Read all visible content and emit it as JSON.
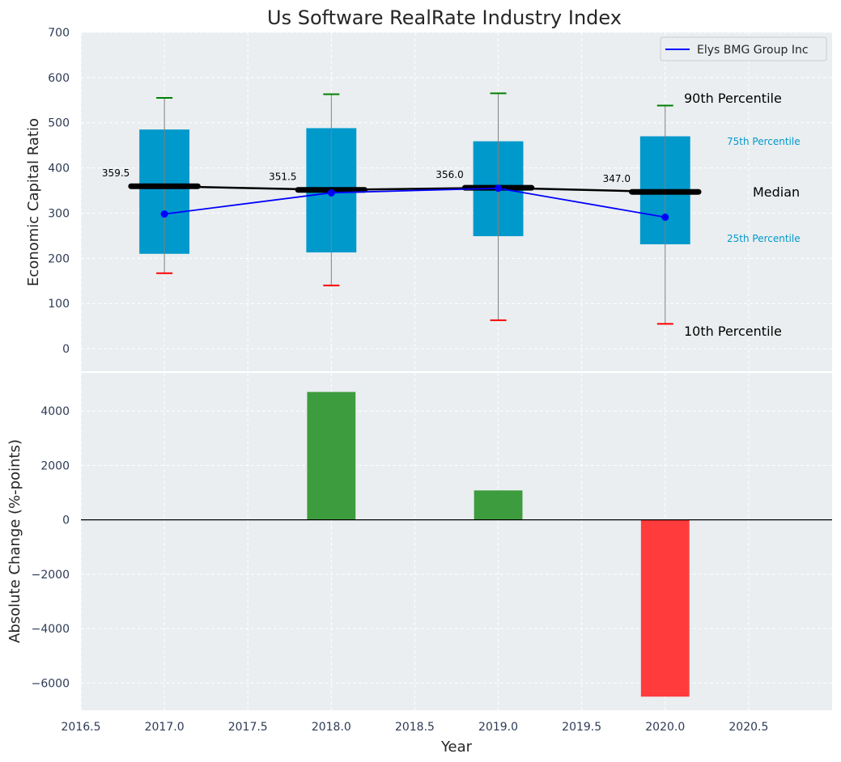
{
  "chart_data": {
    "title": "Us Software RealRate Industry Index",
    "xlabel": "Year",
    "x_ticks": [
      "2016.5",
      "2017.0",
      "2017.5",
      "2018.0",
      "2018.5",
      "2019.0",
      "2019.5",
      "2020.0",
      "2020.5"
    ],
    "xlim": [
      2016.5,
      2021.0
    ],
    "grid": true,
    "panels": [
      {
        "type": "box",
        "ylabel": "Economic Capital Ratio",
        "ylim": [
          -50,
          700
        ],
        "y_ticks": [
          "0",
          "100",
          "200",
          "300",
          "400",
          "500",
          "600",
          "700"
        ],
        "boxes": [
          {
            "x": 2017.0,
            "p10": 167,
            "p25": 210,
            "median": 359.5,
            "p75": 485,
            "p90": 555,
            "median_label": "359.5"
          },
          {
            "x": 2018.0,
            "p10": 140,
            "p25": 213,
            "median": 351.5,
            "p75": 488,
            "p90": 563,
            "median_label": "351.5"
          },
          {
            "x": 2019.0,
            "p10": 63,
            "p25": 249,
            "median": 356.0,
            "p75": 459,
            "p90": 565,
            "median_label": "356.0"
          },
          {
            "x": 2020.0,
            "p10": 55,
            "p25": 231,
            "median": 347.0,
            "p75": 470,
            "p90": 538,
            "median_label": "347.0"
          }
        ],
        "series": [
          {
            "name": "Elys BMG Group Inc",
            "color": "#0000ff",
            "x": [
              2017,
              2018,
              2019,
              2020
            ],
            "values": [
              298,
              345,
              355,
              291
            ]
          }
        ],
        "legend_position": "top-right",
        "annotations": {
          "p90": "90th Percentile",
          "p75": "75th Percentile",
          "median": "Median",
          "p25": "25th Percentile",
          "p10": "10th Percentile"
        },
        "colors": {
          "box": "#0099cc",
          "median": "#000000",
          "p90_cap": "#008000",
          "p10_cap": "#ff0000",
          "whisker": "#808080",
          "annotation_small": "#0099cc"
        }
      },
      {
        "type": "bar",
        "ylabel": "Absolute Change (%-points)",
        "ylim": [
          -7000,
          5400
        ],
        "y_ticks": [
          "−6000",
          "−4000",
          "−2000",
          "0",
          "2000",
          "4000"
        ],
        "x": [
          2017,
          2018,
          2019,
          2020
        ],
        "values": [
          0,
          4700,
          1080,
          -6500
        ],
        "colors": {
          "positive": "#3d9c3d",
          "negative": "#ff3b3b"
        }
      }
    ]
  }
}
